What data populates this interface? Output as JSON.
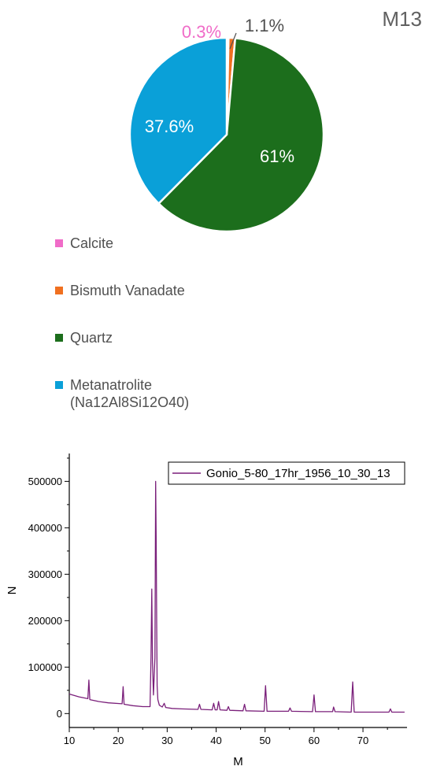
{
  "chart_data": [
    {
      "type": "pie",
      "title": "M13",
      "slices": [
        {
          "name": "Calcite",
          "value": 0.3,
          "label": "0.3%",
          "color": "#f06cc8"
        },
        {
          "name": "Bismuth Vanadate",
          "value": 1.1,
          "label": "1.1%",
          "color": "#f07020"
        },
        {
          "name": "Quartz",
          "value": 61,
          "label": "61%",
          "color": "#1c6e1c"
        },
        {
          "name": "Metanatrolite\n(Na12Al8Si12O40)",
          "value": 37.6,
          "label": "37.6%",
          "color": "#0aa0d8"
        }
      ],
      "legend": "bottom"
    },
    {
      "type": "line",
      "xlabel": "M",
      "ylabel": "N",
      "xlim": [
        10,
        79
      ],
      "ylim": [
        -30000,
        560000
      ],
      "xticks": [
        10,
        20,
        30,
        40,
        50,
        60,
        70
      ],
      "yticks": [
        0,
        100000,
        200000,
        300000,
        400000,
        500000
      ],
      "legend": "top-right",
      "series": [
        {
          "name": "Gonio_5-80_17hr_1956_10_30_13",
          "color": "#7a1f7a",
          "x": [
            10,
            12,
            13.8,
            14.0,
            14.2,
            16,
            18,
            20.8,
            21.0,
            21.2,
            23,
            25,
            26.5,
            26.7,
            26.85,
            27.0,
            27.2,
            27.5,
            27.65,
            27.75,
            27.85,
            27.95,
            28.1,
            28.4,
            29,
            29.4,
            29.7,
            31,
            33,
            36.3,
            36.6,
            36.9,
            39.2,
            39.5,
            39.8,
            40.2,
            40.5,
            40.8,
            42.2,
            42.5,
            42.8,
            45.5,
            45.8,
            46.1,
            49.8,
            50.1,
            50.4,
            54.8,
            55.1,
            55.4,
            59.7,
            60.0,
            60.3,
            63.8,
            64.0,
            64.3,
            67.6,
            67.9,
            68.2,
            75.3,
            75.6,
            75.9,
            77,
            78.5
          ],
          "y": [
            42000,
            36000,
            32000,
            72000,
            30000,
            26000,
            23000,
            21000,
            58000,
            20000,
            17000,
            15000,
            15000,
            120000,
            268000,
            110000,
            40000,
            120000,
            500000,
            370000,
            200000,
            60000,
            30000,
            18000,
            14000,
            22000,
            13000,
            11000,
            10000,
            9000,
            20000,
            9000,
            8000,
            22000,
            8000,
            8000,
            26000,
            8000,
            7000,
            15000,
            7000,
            6000,
            20000,
            6000,
            5000,
            60000,
            5000,
            5000,
            12000,
            5000,
            4000,
            40000,
            4000,
            4000,
            14000,
            4000,
            3000,
            68000,
            3000,
            3000,
            10000,
            3000,
            3000,
            3000
          ]
        }
      ]
    }
  ]
}
